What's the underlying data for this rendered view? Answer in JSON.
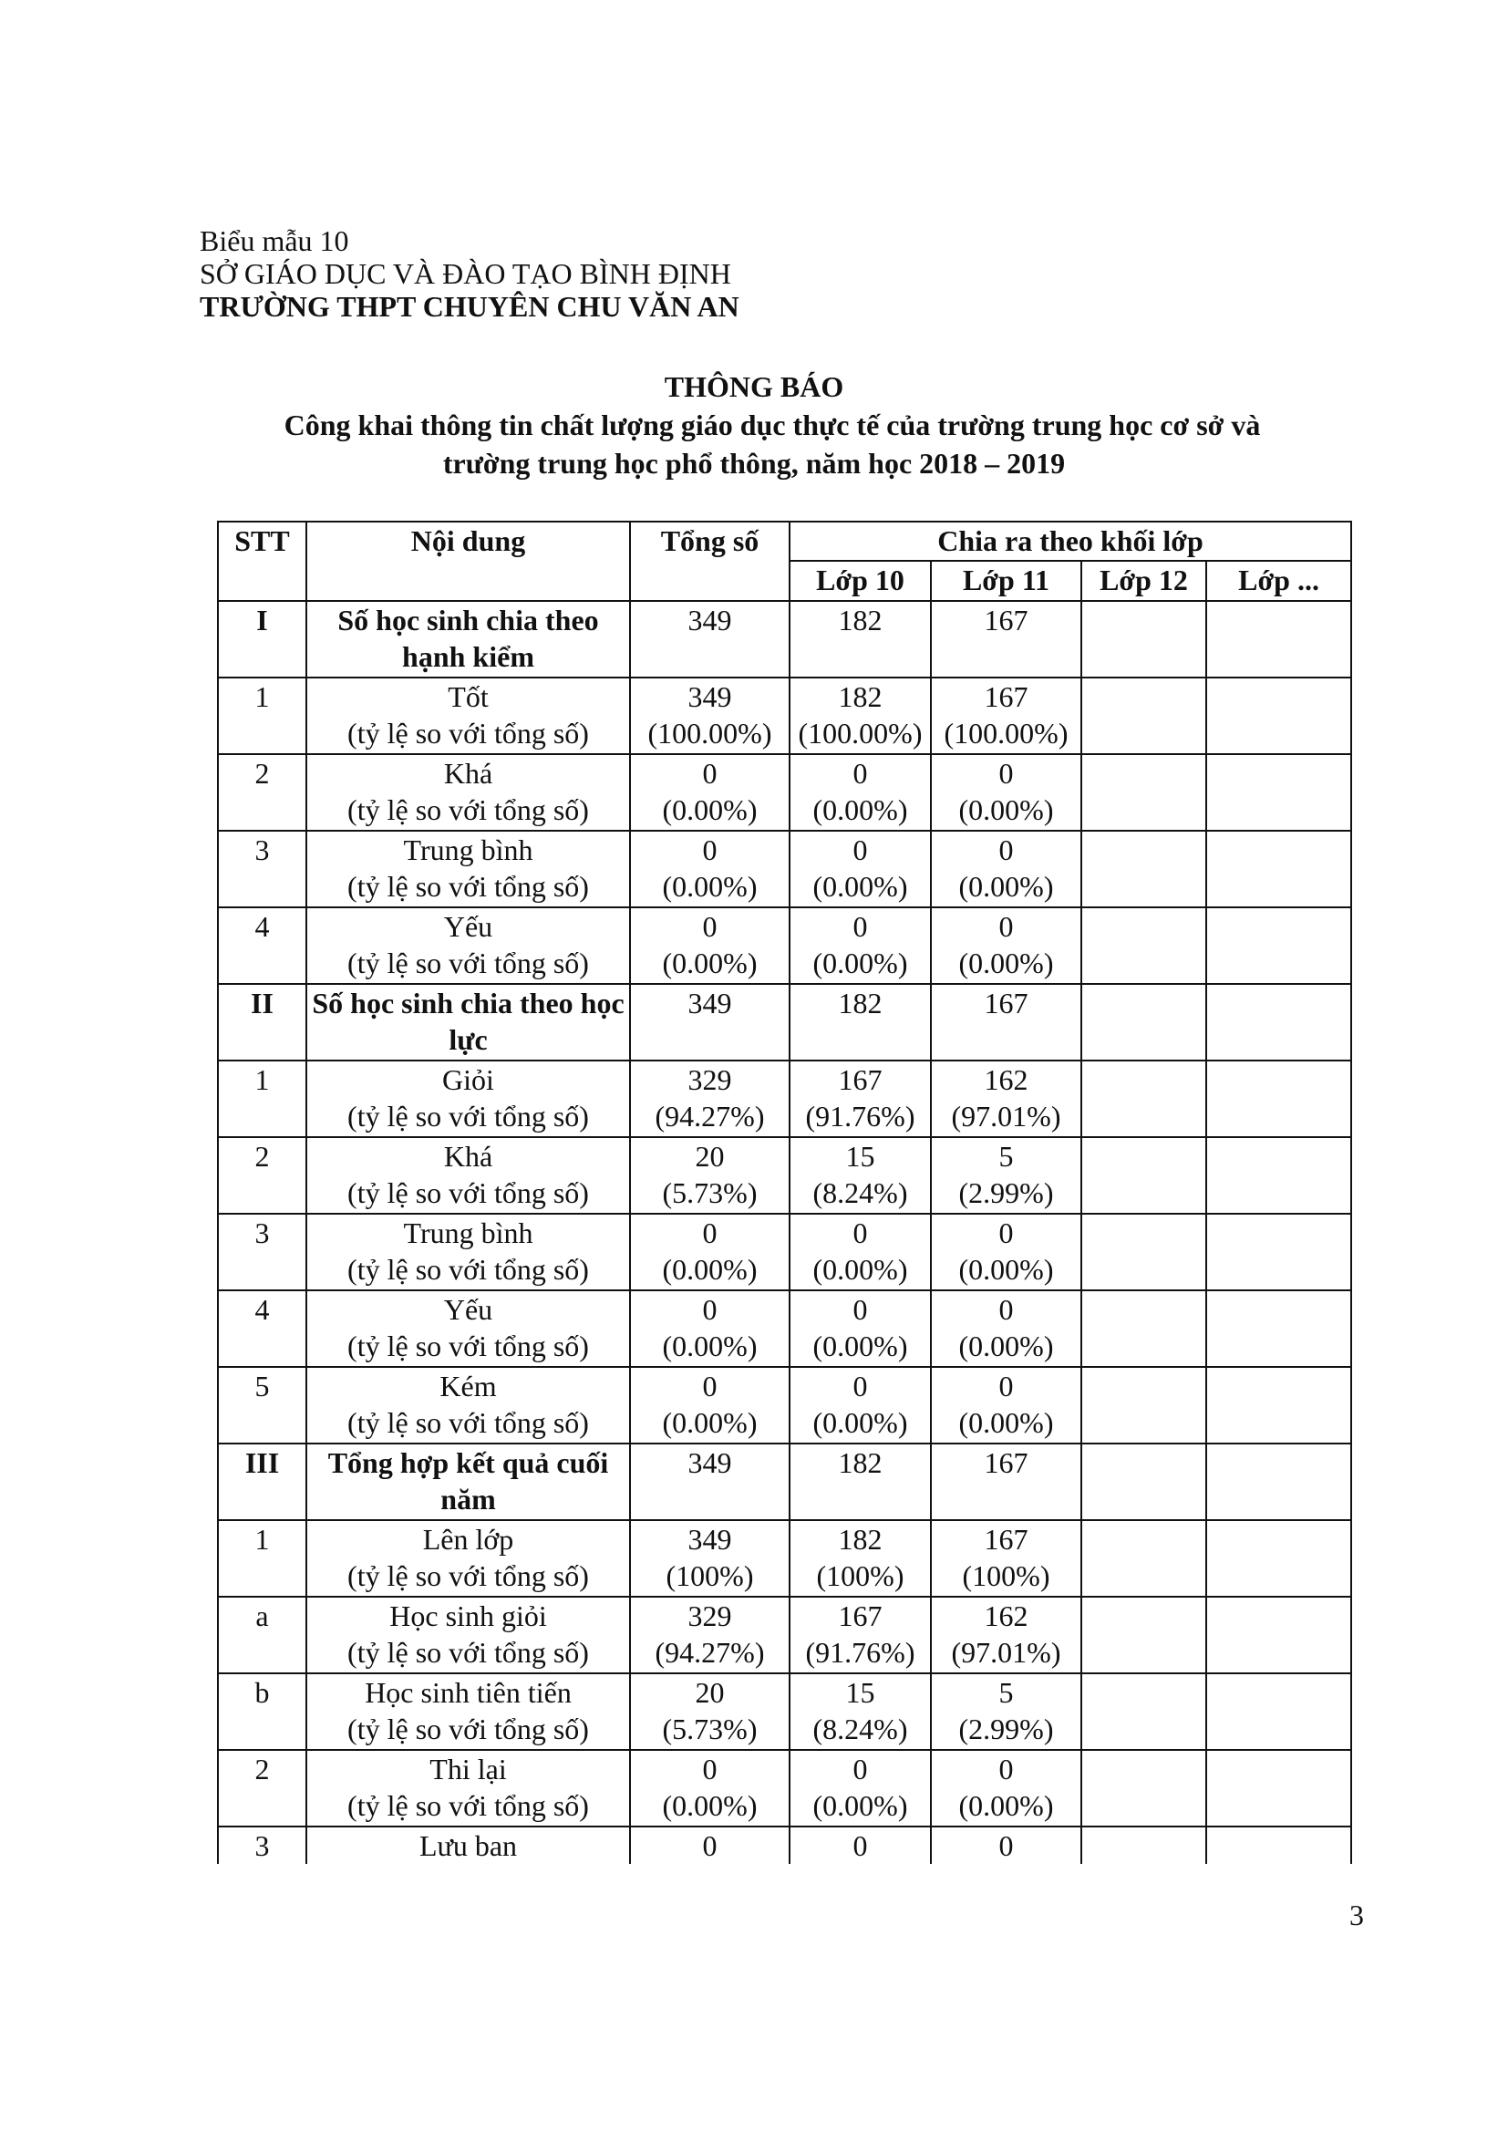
{
  "header": {
    "form": "Biểu mẫu 10",
    "department": "SỞ GIÁO DỤC VÀ ĐÀO TẠO BÌNH ĐỊNH",
    "school": "TRƯỜNG THPT CHUYÊN CHU VĂN AN"
  },
  "title": "THÔNG BÁO",
  "subtitle_line1": "Công khai thông tin chất lượng giáo dục thực tế của trường trung học cơ sở và",
  "subtitle_line2": "trường trung học phổ thông, năm học 2018 – 2019",
  "table": {
    "headers": {
      "stt": "STT",
      "content": "Nội dung",
      "total": "Tổng số",
      "split": "Chia ra theo khối lớp",
      "grades": [
        "Lớp 10",
        "Lớp 11",
        "Lớp 12",
        "Lớp ..."
      ]
    },
    "rows": [
      {
        "stt": "I",
        "content": "Số học sinh chia theo hạnh kiểm",
        "bold": true,
        "total": "349",
        "g10": "182",
        "g11": "167",
        "g12": "",
        "gx": ""
      },
      {
        "stt": "1",
        "content": "Tốt",
        "sub": "(tỷ lệ so với tổng số)",
        "total": "349",
        "total_pct": "(100.00%)",
        "g10": "182",
        "g10_pct": "(100.00%)",
        "g11": "167",
        "g11_pct": "(100.00%)"
      },
      {
        "stt": "2",
        "content": "Khá",
        "sub": "(tỷ lệ so với tổng số)",
        "total": "0",
        "total_pct": "(0.00%)",
        "g10": "0",
        "g10_pct": "(0.00%)",
        "g11": "0",
        "g11_pct": "(0.00%)"
      },
      {
        "stt": "3",
        "content": "Trung bình",
        "sub": "(tỷ lệ so với tổng số)",
        "total": "0",
        "total_pct": "(0.00%)",
        "g10": "0",
        "g10_pct": "(0.00%)",
        "g11": "0",
        "g11_pct": "(0.00%)"
      },
      {
        "stt": "4",
        "content": "Yếu",
        "sub": "(tỷ lệ so với tổng số)",
        "total": "0",
        "total_pct": "(0.00%)",
        "g10": "0",
        "g10_pct": "(0.00%)",
        "g11": "0",
        "g11_pct": "(0.00%)"
      },
      {
        "stt": "II",
        "content": "Số học sinh chia theo học lực",
        "bold": true,
        "total": "349",
        "g10": "182",
        "g11": "167"
      },
      {
        "stt": "1",
        "content": "Giỏi",
        "sub": "(tỷ lệ so với tổng số)",
        "total": "329",
        "total_pct": "(94.27%)",
        "g10": "167",
        "g10_pct": "(91.76%)",
        "g11": "162",
        "g11_pct": "(97.01%)"
      },
      {
        "stt": "2",
        "content": "Khá",
        "sub": "(tỷ lệ so với tổng số)",
        "total": "20",
        "total_pct": "(5.73%)",
        "g10": "15",
        "g10_pct": "(8.24%)",
        "g11": "5",
        "g11_pct": "(2.99%)"
      },
      {
        "stt": "3",
        "content": "Trung bình",
        "sub": "(tỷ lệ so với tổng số)",
        "total": "0",
        "total_pct": "(0.00%)",
        "g10": "0",
        "g10_pct": "(0.00%)",
        "g11": "0",
        "g11_pct": "(0.00%)"
      },
      {
        "stt": "4",
        "content": "Yếu",
        "sub": "(tỷ lệ so với tổng số)",
        "total": "0",
        "total_pct": "(0.00%)",
        "g10": "0",
        "g10_pct": "(0.00%)",
        "g11": "0",
        "g11_pct": "(0.00%)"
      },
      {
        "stt": "5",
        "content": "Kém",
        "sub": "(tỷ lệ so với tổng số)",
        "total": "0",
        "total_pct": "(0.00%)",
        "g10": "0",
        "g10_pct": "(0.00%)",
        "g11": "0",
        "g11_pct": "(0.00%)"
      },
      {
        "stt": "III",
        "content": "Tổng hợp kết quả cuối năm",
        "bold": true,
        "total": "349",
        "g10": "182",
        "g11": "167"
      },
      {
        "stt": "1",
        "content": "Lên lớp",
        "sub": "(tỷ lệ so với tổng số)",
        "total": "349",
        "total_pct": "(100%)",
        "g10": "182",
        "g10_pct": "(100%)",
        "g11": "167",
        "g11_pct": "(100%)"
      },
      {
        "stt": "a",
        "content": "Học sinh giỏi",
        "sub": "(tỷ lệ so với tổng số)",
        "total": "329",
        "total_pct": "(94.27%)",
        "g10": "167",
        "g10_pct": "(91.76%)",
        "g11": "162",
        "g11_pct": "(97.01%)"
      },
      {
        "stt": "b",
        "content": "Học sinh tiên tiến",
        "sub": "(tỷ lệ so với tổng số)",
        "total": "20",
        "total_pct": "(5.73%)",
        "g10": "15",
        "g10_pct": "(8.24%)",
        "g11": "5",
        "g11_pct": "(2.99%)"
      },
      {
        "stt": "2",
        "content": "Thi lại",
        "sub": "(tỷ lệ so với tổng số)",
        "total": "0",
        "total_pct": "(0.00%)",
        "g10": "0",
        "g10_pct": "(0.00%)",
        "g11": "0",
        "g11_pct": "(0.00%)"
      },
      {
        "stt": "3",
        "content": "Lưu ban",
        "total": "0",
        "g10": "0",
        "g11": "0",
        "partial": true
      }
    ]
  },
  "page_number": "3"
}
